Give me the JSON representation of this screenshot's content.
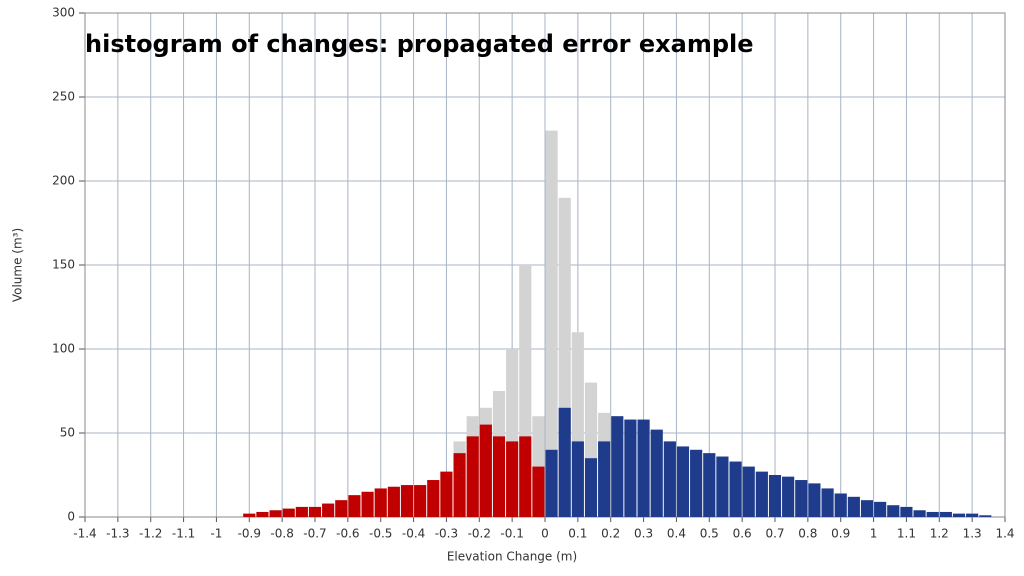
{
  "chart_data": {
    "type": "histogram",
    "title": "histogram of changes: propagated error example",
    "x_label": "Elevation Change (m)",
    "y_label": "Volume (m³)",
    "bins": [
      -0.92,
      -0.88,
      -0.84,
      -0.8,
      -0.76,
      -0.72,
      -0.68,
      -0.64,
      -0.6,
      -0.56,
      -0.52,
      -0.48,
      -0.44,
      -0.4,
      -0.36,
      -0.32,
      -0.28,
      -0.24,
      -0.2,
      -0.16,
      -0.12,
      -0.08,
      -0.04,
      0,
      0.04,
      0.08,
      0.12,
      0.16,
      0.2,
      0.24,
      0.28,
      0.32,
      0.36,
      0.4,
      0.44,
      0.48,
      0.52,
      0.56,
      0.6,
      0.64,
      0.68,
      0.72,
      0.76,
      0.8,
      0.84,
      0.88,
      0.92,
      0.96,
      1,
      1.04,
      1.08,
      1.12,
      1.16,
      1.2,
      1.24,
      1.28,
      1.32,
      1.36
    ],
    "series": [
      {
        "color": "#d3d3d3",
        "values": [
          2,
          3,
          4,
          5,
          6,
          6,
          8,
          10,
          13,
          15,
          17,
          18,
          19,
          19,
          22,
          27,
          45,
          60,
          65,
          75,
          100,
          150,
          60,
          230,
          190,
          110,
          80,
          62,
          60,
          58,
          58,
          52,
          45,
          42,
          40,
          38,
          36,
          33,
          30,
          27,
          25,
          24,
          22,
          20,
          17,
          14,
          12,
          10,
          9,
          7,
          6,
          4,
          3,
          3,
          2,
          2,
          1
        ]
      },
      {
        "color": "#c00000",
        "values": [
          2,
          3,
          4,
          5,
          6,
          6,
          8,
          10,
          13,
          15,
          17,
          18,
          19,
          19,
          22,
          27,
          38,
          48,
          55,
          48,
          45,
          48,
          30,
          null,
          null,
          null,
          null,
          null,
          null,
          null,
          null,
          null,
          null,
          null,
          null,
          null,
          null,
          null,
          null,
          null,
          null,
          null,
          null,
          null,
          null,
          null,
          null,
          null,
          null,
          null,
          null,
          null,
          null,
          null,
          null,
          null,
          null
        ]
      },
      {
        "color": "#1f3c8c",
        "values": [
          null,
          null,
          null,
          null,
          null,
          null,
          null,
          null,
          null,
          null,
          null,
          null,
          null,
          null,
          null,
          null,
          null,
          null,
          null,
          null,
          null,
          null,
          null,
          40,
          65,
          45,
          35,
          45,
          60,
          58,
          58,
          52,
          45,
          42,
          40,
          38,
          36,
          33,
          30,
          27,
          25,
          24,
          22,
          20,
          17,
          14,
          12,
          10,
          9,
          7,
          6,
          4,
          3,
          3,
          2,
          2,
          1
        ]
      }
    ],
    "xlim": [
      -1.4,
      1.4
    ],
    "xticks": [
      -1.4,
      -1.3,
      -1.2,
      -1.1,
      -1,
      -0.9,
      -0.8,
      -0.7,
      -0.6,
      -0.5,
      -0.4,
      -0.3,
      -0.2,
      -0.1,
      0,
      0.1,
      0.2,
      0.3,
      0.4,
      0.5,
      0.6,
      0.7,
      0.8,
      0.9,
      1,
      1.1,
      1.2,
      1.3,
      1.4
    ],
    "ylim": [
      0,
      300
    ],
    "yticks": [
      0,
      50,
      100,
      150,
      200,
      250,
      300
    ],
    "grid": true
  }
}
